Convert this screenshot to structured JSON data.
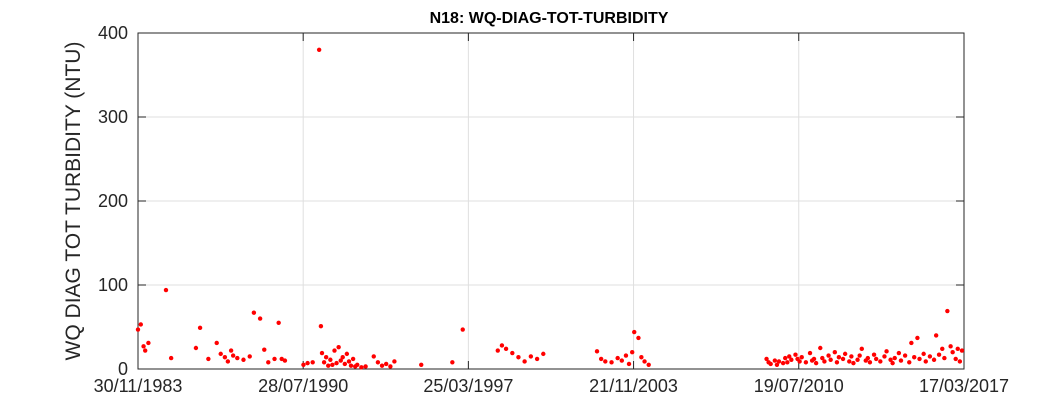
{
  "chart_data": {
    "type": "scatter",
    "title": "N18: WQ-DIAG-TOT-TURBIDITY",
    "xlabel": "",
    "ylabel": "WQ DIAG TOT TURBIDITY (NTU)",
    "xlim": [
      "1983-11-30",
      "2017-03-17"
    ],
    "ylim": [
      0,
      400
    ],
    "xticks": [
      "30/11/1983",
      "28/07/1990",
      "25/03/1997",
      "21/11/2003",
      "19/07/2010",
      "17/03/2017"
    ],
    "yticks": [
      0,
      100,
      200,
      300,
      400
    ],
    "grid": true,
    "marker_color": "#ff0000",
    "series": [
      {
        "points": [
          [
            "1983-11-30",
            47
          ],
          [
            "1984-01-10",
            53
          ],
          [
            "1984-02-20",
            27
          ],
          [
            "1984-03-15",
            22
          ],
          [
            "1984-05-01",
            31
          ],
          [
            "1985-01-15",
            94
          ],
          [
            "1985-04-01",
            13
          ],
          [
            "1986-04-01",
            25
          ],
          [
            "1986-06-01",
            49
          ],
          [
            "1986-10-01",
            12
          ],
          [
            "1987-02-01",
            31
          ],
          [
            "1987-04-01",
            18
          ],
          [
            "1987-06-01",
            14
          ],
          [
            "1987-07-15",
            9
          ],
          [
            "1987-09-01",
            22
          ],
          [
            "1987-10-01",
            16
          ],
          [
            "1987-12-01",
            13
          ],
          [
            "1988-03-01",
            11
          ],
          [
            "1988-06-01",
            15
          ],
          [
            "1988-08-01",
            67
          ],
          [
            "1988-11-01",
            60
          ],
          [
            "1989-01-01",
            23
          ],
          [
            "1989-03-01",
            8
          ],
          [
            "1989-06-01",
            12
          ],
          [
            "1989-08-01",
            55
          ],
          [
            "1989-09-15",
            12
          ],
          [
            "1989-11-01",
            10
          ],
          [
            "1990-08-01",
            5
          ],
          [
            "1990-10-01",
            7
          ],
          [
            "1990-12-15",
            8
          ],
          [
            "1991-03-20",
            380
          ],
          [
            "1991-04-15",
            51
          ],
          [
            "1991-05-01",
            19
          ],
          [
            "1991-06-01",
            8
          ],
          [
            "1991-07-01",
            14
          ],
          [
            "1991-08-01",
            4
          ],
          [
            "1991-09-01",
            11
          ],
          [
            "1991-10-01",
            5
          ],
          [
            "1991-11-01",
            22
          ],
          [
            "1991-12-01",
            7
          ],
          [
            "1992-01-01",
            26
          ],
          [
            "1992-02-01",
            10
          ],
          [
            "1992-03-01",
            14
          ],
          [
            "1992-04-01",
            6
          ],
          [
            "1992-05-01",
            18
          ],
          [
            "1992-06-01",
            9
          ],
          [
            "1992-07-01",
            4
          ],
          [
            "1992-08-01",
            12
          ],
          [
            "1992-09-01",
            3
          ],
          [
            "1992-10-01",
            5
          ],
          [
            "1992-12-01",
            2
          ],
          [
            "1993-02-01",
            3
          ],
          [
            "1993-06-01",
            15
          ],
          [
            "1993-08-01",
            8
          ],
          [
            "1993-10-01",
            4
          ],
          [
            "1993-12-01",
            6
          ],
          [
            "1994-02-01",
            3
          ],
          [
            "1994-04-01",
            9
          ],
          [
            "1995-05-01",
            5
          ],
          [
            "1996-08-01",
            8
          ],
          [
            "1997-01-01",
            47
          ],
          [
            "1998-06-01",
            22
          ],
          [
            "1998-08-01",
            28
          ],
          [
            "1998-10-01",
            24
          ],
          [
            "1999-01-01",
            19
          ],
          [
            "1999-04-01",
            14
          ],
          [
            "1999-07-01",
            9
          ],
          [
            "1999-10-01",
            15
          ],
          [
            "2000-01-01",
            12
          ],
          [
            "2000-04-01",
            18
          ],
          [
            "2002-06-01",
            21
          ],
          [
            "2002-08-01",
            12
          ],
          [
            "2002-10-01",
            9
          ],
          [
            "2003-01-01",
            8
          ],
          [
            "2003-04-01",
            13
          ],
          [
            "2003-06-01",
            10
          ],
          [
            "2003-08-01",
            16
          ],
          [
            "2003-09-15",
            6
          ],
          [
            "2003-11-01",
            20
          ],
          [
            "2003-12-01",
            44
          ],
          [
            "2004-02-01",
            37
          ],
          [
            "2004-03-15",
            14
          ],
          [
            "2004-05-01",
            9
          ],
          [
            "2004-07-01",
            5
          ],
          [
            "2009-04-01",
            12
          ],
          [
            "2009-05-01",
            8
          ],
          [
            "2009-06-01",
            6
          ],
          [
            "2009-08-01",
            10
          ],
          [
            "2009-09-01",
            5
          ],
          [
            "2009-10-01",
            9
          ],
          [
            "2009-12-01",
            7
          ],
          [
            "2010-01-01",
            13
          ],
          [
            "2010-02-01",
            8
          ],
          [
            "2010-03-01",
            15
          ],
          [
            "2010-04-01",
            11
          ],
          [
            "2010-06-01",
            17
          ],
          [
            "2010-07-01",
            12
          ],
          [
            "2010-08-01",
            9
          ],
          [
            "2010-09-01",
            14
          ],
          [
            "2010-11-01",
            8
          ],
          [
            "2011-01-01",
            19
          ],
          [
            "2011-02-01",
            10
          ],
          [
            "2011-03-01",
            12
          ],
          [
            "2011-04-01",
            7
          ],
          [
            "2011-06-01",
            25
          ],
          [
            "2011-07-01",
            13
          ],
          [
            "2011-08-01",
            9
          ],
          [
            "2011-10-01",
            16
          ],
          [
            "2011-11-01",
            11
          ],
          [
            "2012-01-01",
            20
          ],
          [
            "2012-02-01",
            8
          ],
          [
            "2012-03-01",
            14
          ],
          [
            "2012-05-01",
            12
          ],
          [
            "2012-06-01",
            18
          ],
          [
            "2012-08-01",
            9
          ],
          [
            "2012-09-01",
            15
          ],
          [
            "2012-10-01",
            7
          ],
          [
            "2012-12-01",
            11
          ],
          [
            "2013-01-01",
            16
          ],
          [
            "2013-02-01",
            24
          ],
          [
            "2013-04-01",
            10
          ],
          [
            "2013-05-01",
            13
          ],
          [
            "2013-06-01",
            8
          ],
          [
            "2013-08-01",
            17
          ],
          [
            "2013-09-01",
            12
          ],
          [
            "2013-11-01",
            9
          ],
          [
            "2014-01-01",
            15
          ],
          [
            "2014-02-01",
            21
          ],
          [
            "2014-04-01",
            11
          ],
          [
            "2014-05-01",
            7
          ],
          [
            "2014-06-01",
            13
          ],
          [
            "2014-08-01",
            19
          ],
          [
            "2014-09-01",
            10
          ],
          [
            "2014-11-01",
            16
          ],
          [
            "2015-01-01",
            8
          ],
          [
            "2015-02-01",
            31
          ],
          [
            "2015-03-15",
            14
          ],
          [
            "2015-05-01",
            37
          ],
          [
            "2015-06-01",
            12
          ],
          [
            "2015-08-01",
            18
          ],
          [
            "2015-09-01",
            9
          ],
          [
            "2015-11-01",
            15
          ],
          [
            "2016-01-01",
            11
          ],
          [
            "2016-02-01",
            40
          ],
          [
            "2016-03-15",
            17
          ],
          [
            "2016-05-01",
            24
          ],
          [
            "2016-06-01",
            13
          ],
          [
            "2016-07-15",
            69
          ],
          [
            "2016-09-01",
            27
          ],
          [
            "2016-10-01",
            20
          ],
          [
            "2016-11-15",
            12
          ],
          [
            "2016-12-15",
            24
          ],
          [
            "2017-01-15",
            9
          ],
          [
            "2017-02-15",
            22
          ]
        ]
      }
    ]
  }
}
